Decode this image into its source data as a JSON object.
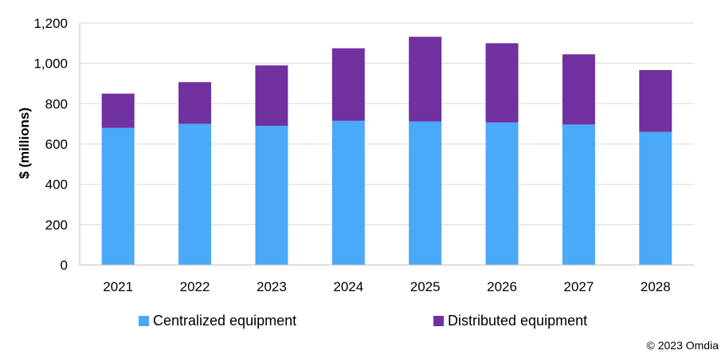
{
  "chart_data": {
    "type": "bar",
    "stacked": true,
    "categories": [
      "2021",
      "2022",
      "2023",
      "2024",
      "2025",
      "2026",
      "2027",
      "2028"
    ],
    "series": [
      {
        "name": "Centralized equipment",
        "color": "#4aa9f8",
        "values": [
          680,
          700,
          690,
          715,
          712,
          707,
          697,
          660
        ]
      },
      {
        "name": "Distributed equipment",
        "color": "#7030a0",
        "values": [
          170,
          207,
          300,
          360,
          420,
          393,
          348,
          307
        ]
      }
    ],
    "totals": [
      850,
      907,
      990,
      1075,
      1132,
      1100,
      1045,
      967
    ],
    "ylabel": "$ (millions)",
    "xlabel": "",
    "ylim": [
      0,
      1200
    ],
    "yticks": [
      0,
      200,
      400,
      600,
      800,
      1000,
      1200
    ],
    "ytick_labels": [
      "0",
      "200",
      "400",
      "600",
      "800",
      "1,000",
      "1,200"
    ],
    "grid": true,
    "legend": "bottom"
  },
  "footer": {
    "copyright": "© 2023 Omdia"
  }
}
